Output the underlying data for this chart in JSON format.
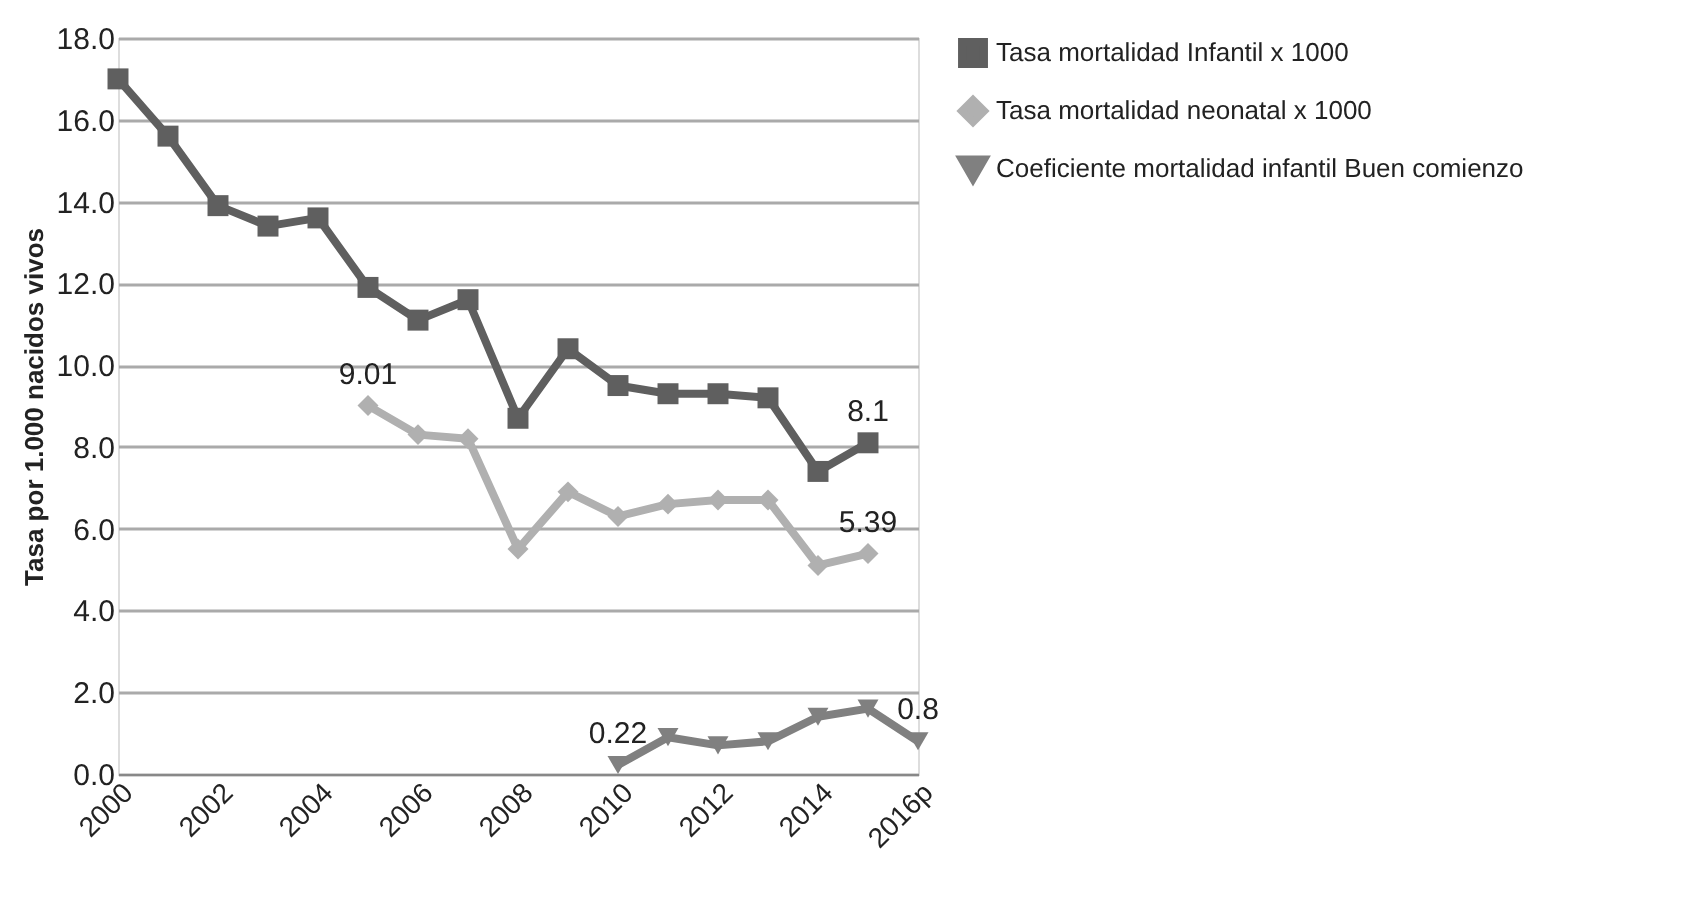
{
  "chart_data": {
    "type": "line",
    "ylabel": "Tasa por 1.000 nacidos vivos",
    "categories": [
      "2000",
      null,
      "2002",
      null,
      "2004",
      null,
      "2006",
      null,
      "2008",
      null,
      "2010",
      null,
      "2012",
      null,
      "2014",
      null,
      "2016p"
    ],
    "series": [
      {
        "name": "Tasa mortalidad Infantil x 1000",
        "color": "#5f5f5f",
        "marker": "square",
        "values": [
          17.0,
          15.6,
          13.9,
          13.4,
          13.6,
          11.9,
          11.1,
          11.6,
          8.7,
          10.4,
          9.5,
          9.3,
          9.3,
          9.2,
          7.4,
          8.1,
          null
        ],
        "value_labels": [
          null,
          null,
          null,
          null,
          null,
          null,
          null,
          null,
          null,
          null,
          null,
          null,
          null,
          null,
          null,
          "8.1",
          null
        ]
      },
      {
        "name": "Tasa mortalidad neonatal  x 1000",
        "color": "#b0b0b0",
        "marker": "diamond",
        "values": [
          null,
          null,
          null,
          null,
          null,
          9.01,
          8.3,
          8.2,
          5.5,
          6.9,
          6.3,
          6.6,
          6.7,
          6.7,
          5.1,
          5.39,
          null
        ],
        "value_labels": [
          null,
          null,
          null,
          null,
          null,
          "9.01",
          null,
          null,
          null,
          null,
          null,
          null,
          null,
          null,
          null,
          "5.39",
          null
        ]
      },
      {
        "name": "Coeficiente mortalidad infantil Buen comienzo",
        "color": "#808080",
        "marker": "triangle",
        "values": [
          null,
          null,
          null,
          null,
          null,
          null,
          null,
          null,
          null,
          null,
          0.22,
          0.9,
          0.7,
          0.8,
          1.4,
          1.6,
          0.8
        ],
        "value_labels": [
          null,
          null,
          null,
          null,
          null,
          null,
          null,
          null,
          null,
          null,
          "0.22",
          null,
          null,
          null,
          null,
          null,
          "0.8"
        ]
      }
    ],
    "ylim": [
      0,
      18
    ],
    "yticks": [
      {
        "value": 0,
        "label": "0.0"
      },
      {
        "value": 2,
        "label": "2.0"
      },
      {
        "value": 4,
        "label": "4.0"
      },
      {
        "value": 6,
        "label": "6.0"
      },
      {
        "value": 8,
        "label": "8.0"
      },
      {
        "value": 10,
        "label": "10.0"
      },
      {
        "value": 12,
        "label": "12.0"
      },
      {
        "value": 14,
        "label": "14.0"
      },
      {
        "value": 16,
        "label": "16.0"
      },
      {
        "value": 18,
        "label": "18.0"
      }
    ],
    "grid": "y",
    "legend": "right",
    "line_style": "solid"
  }
}
